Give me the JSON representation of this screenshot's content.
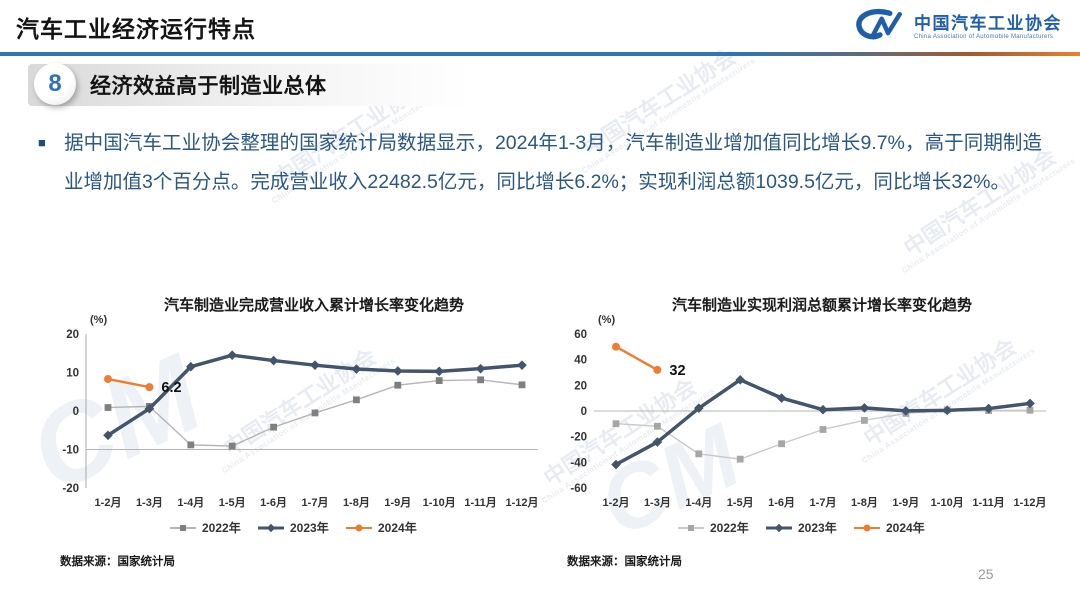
{
  "header": {
    "title": "汽车工业经济运行特点",
    "logo": {
      "mark": "CM",
      "name": "中国汽车工业协会",
      "subtitle": "China Association of Automobile Manufacturers"
    }
  },
  "section": {
    "number": "8",
    "heading": "经济效益高于制造业总体"
  },
  "paragraph": {
    "bullet": "■",
    "text": "据中国汽车工业协会整理的国家统计局数据显示，2024年1-3月，汽车制造业增加值同比增长9.7%，高于同期制造业增加值3个百分点。完成营业收入22482.5亿元，同比增长6.2%；实现利润总额1039.5亿元，同比增长32%。"
  },
  "watermark": {
    "text": "中国汽车工业协会",
    "subtext": "China Association of Automobile Manufacturers",
    "logo": "CM"
  },
  "footer": {
    "page_number": "25"
  },
  "chart_data": [
    {
      "type": "line",
      "title": "汽车制造业完成营业收入累计增长率变化趋势",
      "unit_label": "(%)",
      "categories": [
        "1-2月",
        "1-3月",
        "1-4月",
        "1-5月",
        "1-6月",
        "1-7月",
        "1-8月",
        "1-9月",
        "1-10月",
        "1-11月",
        "1-12月"
      ],
      "y_ticks": [
        20,
        10,
        0,
        -10,
        -20
      ],
      "ylim": [
        -20,
        20
      ],
      "axis_line_at": -10,
      "has_y_axis_line": true,
      "grid": false,
      "legend_position": "bottom",
      "series": [
        {
          "name": "2022年",
          "color": "#7F7F7F",
          "line_color": "#B5B5B5",
          "marker": "square",
          "values": [
            0.9,
            1.2,
            -8.8,
            -9.1,
            -4.2,
            -0.5,
            2.9,
            6.7,
            7.9,
            8.1,
            6.8
          ]
        },
        {
          "name": "2023年",
          "color": "#44546A",
          "marker": "diamond",
          "thick": true,
          "values": [
            -6.3,
            0.6,
            11.5,
            14.5,
            13.1,
            11.9,
            10.9,
            10.4,
            10.3,
            11.0,
            11.9
          ]
        },
        {
          "name": "2024年",
          "color": "#ED7D31",
          "marker": "circle",
          "values": [
            8.3,
            6.2
          ],
          "last_label": "6.2"
        }
      ],
      "source": "数据来源：国家统计局"
    },
    {
      "type": "line",
      "title": "汽车制造业实现利润总额累计增长率变化趋势",
      "unit_label": "(%)",
      "categories": [
        "1-2月",
        "1-3月",
        "1-4月",
        "1-5月",
        "1-6月",
        "1-7月",
        "1-8月",
        "1-9月",
        "1-10月",
        "1-11月",
        "1-12月"
      ],
      "y_ticks": [
        60,
        40,
        20,
        0,
        -20,
        -40,
        -60
      ],
      "ylim": [
        -60,
        60
      ],
      "axis_line_at": 0,
      "has_y_axis_line": false,
      "grid": false,
      "legend_position": "bottom",
      "series": [
        {
          "name": "2022年",
          "color": "#A6A6A6",
          "line_color": "#C9C9C9",
          "marker": "square",
          "values": [
            -9.9,
            -11.9,
            -33.4,
            -37.5,
            -25.5,
            -14.4,
            -7.3,
            -1.9,
            0.8,
            0.3,
            0.6
          ]
        },
        {
          "name": "2023年",
          "color": "#44546A",
          "marker": "diamond",
          "thick": true,
          "values": [
            -41.7,
            -24.2,
            2.2,
            24.3,
            10.1,
            1.0,
            2.4,
            0.1,
            0.5,
            1.9,
            5.9
          ]
        },
        {
          "name": "2024年",
          "color": "#ED7D31",
          "marker": "circle",
          "values": [
            50.1,
            32.0
          ],
          "last_label": "32"
        }
      ],
      "source": "数据来源：国家统计局"
    }
  ]
}
